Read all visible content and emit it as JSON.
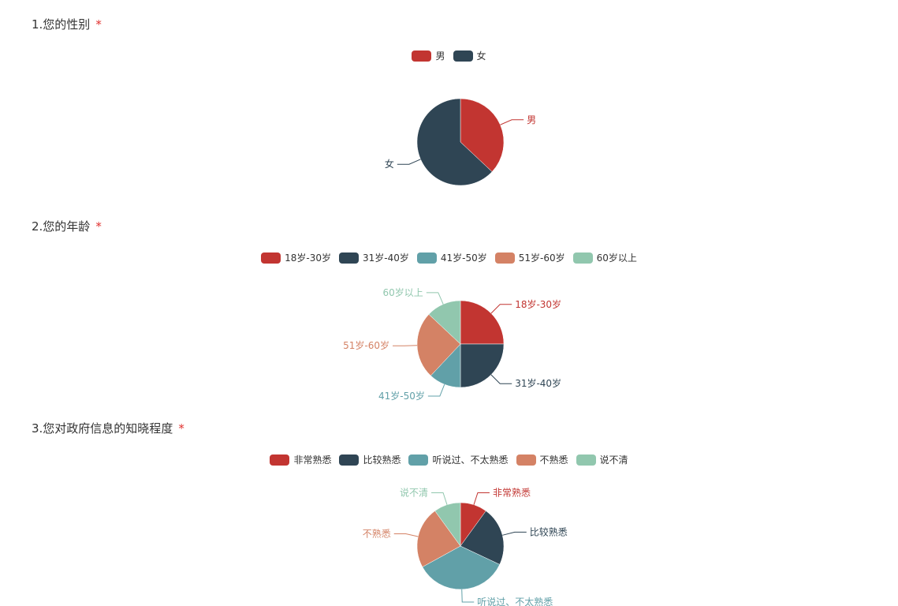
{
  "required_mark": "*",
  "colors": [
    "#c23531",
    "#2f4554",
    "#61a0a8",
    "#d48265",
    "#91c7ae"
  ],
  "questions": [
    {
      "title": "1.您的性别"
    },
    {
      "title": "2.您的年龄"
    },
    {
      "title": "3.您对政府信息的知晓程度"
    }
  ],
  "chart_data": [
    {
      "type": "pie",
      "categories": [
        "男",
        "女"
      ],
      "values": [
        37,
        63
      ],
      "legend_position": "top-center"
    },
    {
      "type": "pie",
      "categories": [
        "18岁-30岁",
        "31岁-40岁",
        "41岁-50岁",
        "51岁-60岁",
        "60岁以上"
      ],
      "values": [
        25,
        25,
        12,
        25,
        13
      ],
      "legend_position": "top-center"
    },
    {
      "type": "pie",
      "categories": [
        "非常熟悉",
        "比较熟悉",
        "听说过、不太熟悉",
        "不熟悉",
        "说不清"
      ],
      "values": [
        10,
        22,
        35,
        23,
        10
      ],
      "legend_position": "top-center"
    }
  ]
}
